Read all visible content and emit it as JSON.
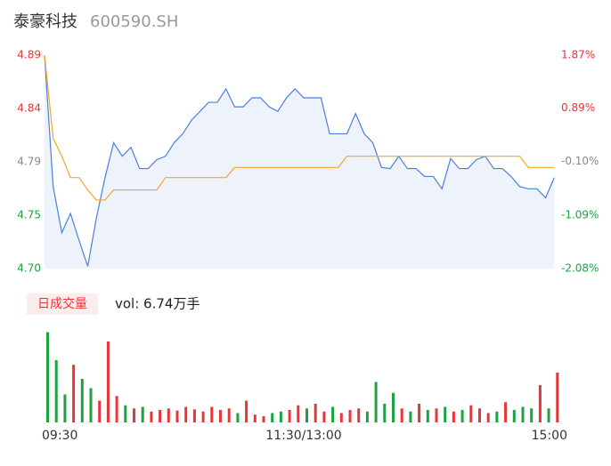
{
  "chart_data": [
    {
      "type": "line",
      "title": "泰豪科技",
      "subtitle": "600590.SH",
      "area": true,
      "fill_color": "#eef2fb",
      "x": [
        0,
        4,
        8,
        12,
        16,
        20,
        24,
        28,
        32,
        36,
        40,
        44,
        48,
        52,
        56,
        60,
        64,
        68,
        72,
        76,
        80,
        84,
        88,
        92,
        96,
        100,
        104,
        108,
        112,
        116,
        120,
        124,
        128,
        132,
        136,
        140,
        144,
        148,
        152,
        156,
        160,
        164,
        168,
        172,
        176,
        180,
        184,
        188,
        192,
        196,
        200,
        204,
        208,
        212,
        216,
        220,
        224,
        228,
        232,
        236
      ],
      "xlim": [
        0,
        240
      ],
      "ylim": [
        4.7,
        4.89
      ],
      "yticks": [
        4.89,
        {
          "value": 4.8425,
          "label": "4.84"
        },
        {
          "value": 4.795,
          "label": "4.79"
        },
        {
          "value": 4.7475,
          "label": "4.75"
        },
        {
          "value": 4.7,
          "label": "4.70"
        }
      ],
      "ytick_colors": [
        "#e8353a",
        "#e8353a",
        "#888888",
        "#1aa33f",
        "#1aa33f"
      ],
      "y2lim": [
        -2.08,
        1.87
      ],
      "y2ticks": [
        {
          "value": 1.87,
          "label": "1.87%"
        },
        {
          "value": 0.89,
          "label": "0.89%"
        },
        {
          "value": -0.1,
          "label": "-0.10%"
        },
        {
          "value": -1.09,
          "label": "-1.09%"
        },
        {
          "value": -2.08,
          "label": "-2.08%"
        }
      ],
      "y2tick_colors": [
        "#e8353a",
        "#e8353a",
        "#888888",
        "#1aa33f",
        "#1aa33f"
      ],
      "series": [
        {
          "color": "#4a7fe0",
          "values": [
            4.89,
            4.773,
            4.732,
            4.749,
            4.725,
            4.702,
            4.745,
            4.781,
            4.812,
            4.8,
            4.808,
            4.789,
            4.789,
            4.797,
            4.8,
            4.812,
            4.82,
            4.832,
            4.84,
            4.848,
            4.848,
            4.86,
            4.844,
            4.844,
            4.852,
            4.852,
            4.844,
            4.84,
            4.852,
            4.86,
            4.852,
            4.852,
            4.852,
            4.82,
            4.82,
            4.82,
            4.838,
            4.82,
            4.812,
            4.79,
            4.789,
            4.8,
            4.789,
            4.789,
            4.782,
            4.782,
            4.771,
            4.798,
            4.789,
            4.789,
            4.797,
            4.8,
            4.789,
            4.789,
            4.782,
            4.773,
            4.771,
            4.771,
            4.763,
            4.781
          ]
        },
        {
          "color": "#f5a623",
          "values": [
            4.89,
            4.816,
            4.8,
            4.781,
            4.781,
            4.77,
            4.761,
            4.761,
            4.77,
            4.77,
            4.77,
            4.77,
            4.77,
            4.77,
            4.781,
            4.781,
            4.781,
            4.781,
            4.781,
            4.781,
            4.781,
            4.781,
            4.79,
            4.79,
            4.79,
            4.79,
            4.79,
            4.79,
            4.79,
            4.79,
            4.79,
            4.79,
            4.79,
            4.79,
            4.79,
            4.8,
            4.8,
            4.8,
            4.8,
            4.8,
            4.8,
            4.8,
            4.8,
            4.8,
            4.8,
            4.8,
            4.8,
            4.8,
            4.8,
            4.8,
            4.8,
            4.8,
            4.8,
            4.8,
            4.8,
            4.8,
            4.79,
            4.79,
            4.79,
            4.79
          ]
        }
      ]
    },
    {
      "type": "bar",
      "title": "日成交量",
      "subtitle": "vol: 6.74万手",
      "up_color": "#e8353a",
      "down_color": "#1aa33f",
      "xlim": [
        0,
        240
      ],
      "ylim": [
        0,
        3000
      ],
      "xticks": [
        {
          "value": 0,
          "label": "09:30"
        },
        {
          "value": 120,
          "label": "11:30/13:00"
        },
        {
          "value": 240,
          "label": "15:00"
        }
      ],
      "values": [
        2900,
        2000,
        900,
        1850,
        1400,
        1100,
        700,
        2600,
        850,
        550,
        450,
        500,
        350,
        400,
        450,
        380,
        500,
        420,
        350,
        500,
        400,
        450,
        300,
        700,
        250,
        200,
        300,
        350,
        400,
        550,
        450,
        600,
        350,
        500,
        300,
        400,
        450,
        350,
        1300,
        600,
        950,
        450,
        350,
        600,
        400,
        450,
        500,
        350,
        400,
        550,
        450,
        300,
        350,
        650,
        400,
        500,
        450,
        1200,
        450,
        1600
      ]
    }
  ]
}
